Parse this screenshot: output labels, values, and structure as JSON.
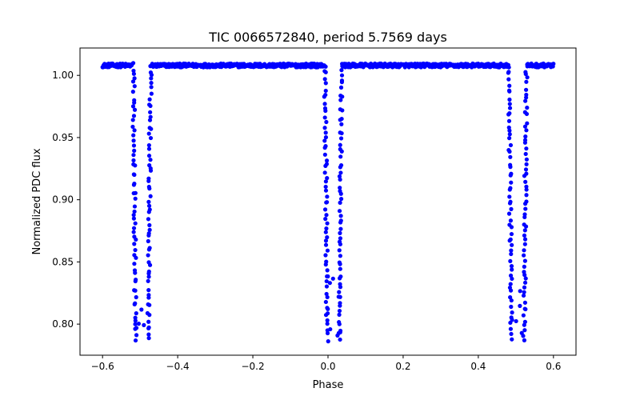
{
  "chart_data": {
    "type": "scatter",
    "title": "TIC 0066572840, period 5.7569 days",
    "xlabel": "Phase",
    "ylabel": "Normalized PDC flux",
    "xlim": [
      -0.66,
      0.66
    ],
    "ylim": [
      0.775,
      1.022
    ],
    "grid": false,
    "xticks": [
      -0.6,
      -0.4,
      -0.2,
      0.0,
      0.2,
      0.4,
      0.6
    ],
    "xtick_labels": [
      "−0.6",
      "−0.4",
      "−0.2",
      "0.0",
      "0.2",
      "0.4",
      "0.6"
    ],
    "yticks": [
      0.8,
      0.85,
      0.9,
      0.95,
      1.0
    ],
    "ytick_labels": [
      "0.80",
      "0.85",
      "0.90",
      "0.95",
      "1.00"
    ],
    "marker_color": "#0000ff",
    "baseline_flux": 1.008,
    "phase_range": [
      -0.6,
      0.6
    ],
    "eclipses": [
      {
        "center": -0.5,
        "left_edge": -0.518,
        "right_edge": -0.472,
        "min_flux": 0.788
      },
      {
        "center": 0.0,
        "left_edge": -0.008,
        "right_edge": 0.036,
        "min_flux": 0.788
      },
      {
        "center": 0.5,
        "left_edge": 0.482,
        "right_edge": 0.528,
        "min_flux": 0.788
      }
    ],
    "series": [
      {
        "name": "PDC flux",
        "color": "#0000ff",
        "points": "generated: baseline 1.008 with narrow V-shaped eclipses at phases -0.5, 0.0, 0.5 reaching ~0.788"
      }
    ]
  }
}
